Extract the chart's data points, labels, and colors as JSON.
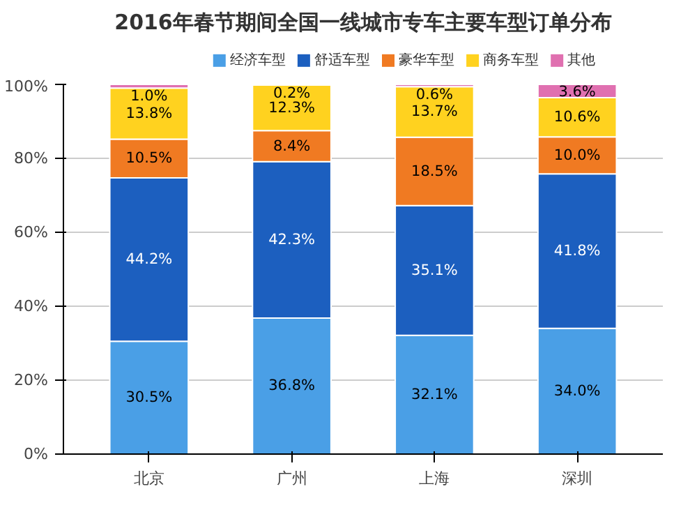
{
  "chart_data": {
    "type": "bar",
    "stacked": true,
    "title": "2016年春节期间全国一线城市专车主要车型订单分布",
    "categories": [
      "北京",
      "广州",
      "上海",
      "深圳"
    ],
    "ylim": [
      0,
      100
    ],
    "yticks": [
      {
        "value": 0,
        "label": "0%"
      },
      {
        "value": 20,
        "label": "20%"
      },
      {
        "value": 40,
        "label": "40%"
      },
      {
        "value": 60,
        "label": "60%"
      },
      {
        "value": 80,
        "label": "80%"
      },
      {
        "value": 100,
        "label": "100%"
      }
    ],
    "grid": "y",
    "legend": "top",
    "series": [
      {
        "name": "经济车型",
        "color": "#4a9fe6",
        "values": [
          30.5,
          36.8,
          32.1,
          34.0
        ],
        "value_labels": [
          "30.5%",
          "36.8%",
          "32.1%",
          "34.0%"
        ]
      },
      {
        "name": "舒适车型",
        "color": "#1c5fbf",
        "values": [
          44.2,
          42.3,
          35.1,
          41.8
        ],
        "value_labels": [
          "44.2%",
          "42.3%",
          "35.1%",
          "41.8%"
        ]
      },
      {
        "name": "豪华车型",
        "color": "#f07a22",
        "values": [
          10.5,
          8.4,
          18.5,
          10.0
        ],
        "value_labels": [
          "10.5%",
          "8.4%",
          "18.5%",
          "10.0%"
        ]
      },
      {
        "name": "商务车型",
        "color": "#ffd21f",
        "values": [
          13.8,
          12.3,
          13.7,
          10.6
        ],
        "value_labels": [
          "13.8%",
          "12.3%",
          "13.7%",
          "10.6%"
        ]
      },
      {
        "name": "其他",
        "color": "#e070b0",
        "values": [
          1.0,
          0.2,
          0.6,
          3.6
        ],
        "value_labels": [
          "1.0%",
          "0.2%",
          "0.6%",
          "3.6%"
        ]
      }
    ]
  }
}
